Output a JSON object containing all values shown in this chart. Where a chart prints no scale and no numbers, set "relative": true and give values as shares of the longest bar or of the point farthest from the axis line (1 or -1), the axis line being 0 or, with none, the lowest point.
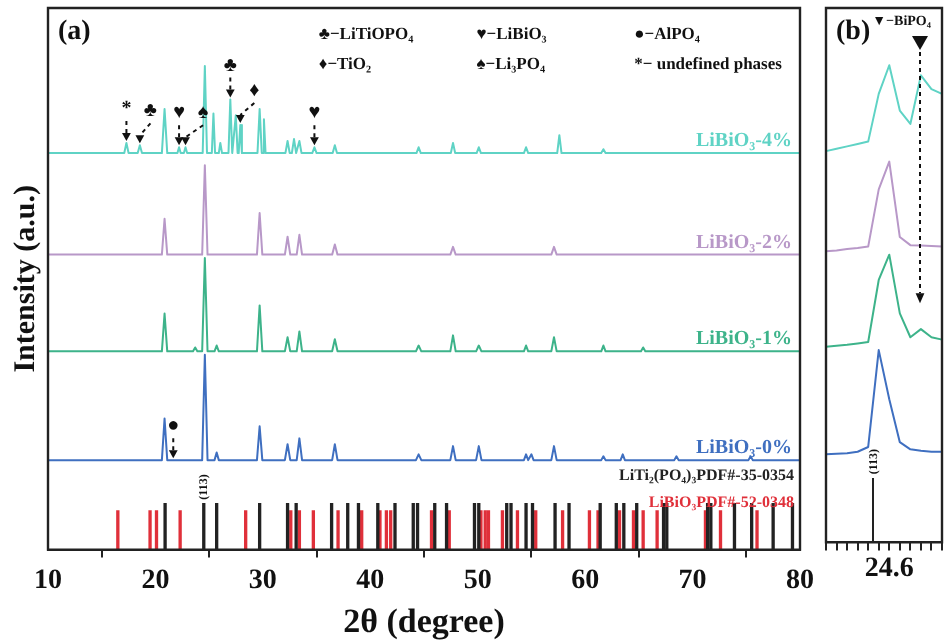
{
  "chart_data": [
    {
      "type": "line",
      "relative": true,
      "marker": "none",
      "xlabel": "2θ (degree)",
      "ylabel": "Intensity (a.u.)",
      "xlim": [
        10,
        80
      ],
      "xticks": [
        10,
        20,
        30,
        40,
        50,
        60,
        70,
        80
      ],
      "annotations": [
        "(a)",
        "♣−LiTiOPO₄",
        "♥−LiBiO₃",
        "●−AlPO₄",
        "♦−TiO₂",
        "♠−Li₃PO₄",
        "*− undefined phases",
        {
          "text": "*",
          "x": 17.3,
          "y": 0.841
        },
        {
          "text": "♣",
          "x": 18.55,
          "y": 0.836
        },
        {
          "text": "♥",
          "x": 22.2,
          "y": 0.832
        },
        {
          "text": "♠",
          "x": 22.8,
          "y": 0.832
        },
        {
          "text": "♣",
          "x": 26.97,
          "y": 0.931
        },
        {
          "text": "♦",
          "x": 27.9,
          "y": 0.878
        },
        {
          "text": "♥",
          "x": 34.8,
          "y": 0.832
        },
        {
          "text": "●",
          "x": 21.66,
          "y": 0.185
        },
        {
          "text": "(113)",
          "x": 24.5,
          "y": 0.095
        }
      ],
      "series": [
        {
          "name": "LiBiO₃-4%",
          "color": "#5fd3c5",
          "x": [
            10,
            17.1,
            17.3,
            17.5,
            18.35,
            18.55,
            18.75,
            20.6,
            20.85,
            21.1,
            22.05,
            22.2,
            22.35,
            22.65,
            22.8,
            22.95,
            24.4,
            24.6,
            24.8,
            25.25,
            25.4,
            25.55,
            25.9,
            26.04,
            26.2,
            26.8,
            26.97,
            27.15,
            27.3,
            27.48,
            27.65,
            27.75,
            27.9,
            28.05,
            29.5,
            29.7,
            29.9,
            29.95,
            30.1,
            30.25,
            32.1,
            32.3,
            32.5,
            32.7,
            32.9,
            33.1,
            33.2,
            33.4,
            33.6,
            34.6,
            34.8,
            35,
            36.5,
            36.7,
            36.9,
            44.3,
            44.5,
            44.7,
            47.5,
            47.7,
            47.9,
            49.9,
            50.1,
            50.3,
            54.3,
            54.5,
            54.7,
            57.4,
            57.6,
            57.8,
            61.5,
            61.7,
            61.9,
            80
          ],
          "values": [
            0.82,
            0.82,
            0.841,
            0.82,
            0.82,
            0.836,
            0.82,
            0.82,
            0.911,
            0.82,
            0.82,
            0.832,
            0.82,
            0.82,
            0.832,
            0.82,
            0.82,
            1,
            0.82,
            0.82,
            0.902,
            0.82,
            0.82,
            0.841,
            0.82,
            0.82,
            0.931,
            0.82,
            0.82,
            0.898,
            0.82,
            0.82,
            0.878,
            0.82,
            0.82,
            0.911,
            0.82,
            0.82,
            0.89,
            0.82,
            0.82,
            0.845,
            0.82,
            0.82,
            0.849,
            0.82,
            0.82,
            0.845,
            0.82,
            0.82,
            0.832,
            0.82,
            0.82,
            0.836,
            0.82,
            0.82,
            0.832,
            0.82,
            0.82,
            0.841,
            0.82,
            0.82,
            0.832,
            0.82,
            0.82,
            0.832,
            0.82,
            0.82,
            0.857,
            0.82,
            0.82,
            0.828,
            0.82,
            0.82
          ]
        },
        {
          "name": "LiBiO₃-2%",
          "color": "#b898c8",
          "x": [
            10,
            20.6,
            20.85,
            21.1,
            24.35,
            24.6,
            24.85,
            29.45,
            29.7,
            29.95,
            32.05,
            32.3,
            32.55,
            33.15,
            33.4,
            33.65,
            36.45,
            36.7,
            36.95,
            47.45,
            47.7,
            47.95,
            56.85,
            57.1,
            57.35,
            80
          ],
          "values": [
            0.61,
            0.61,
            0.684,
            0.61,
            0.61,
            0.795,
            0.61,
            0.61,
            0.696,
            0.61,
            0.61,
            0.647,
            0.61,
            0.61,
            0.651,
            0.61,
            0.61,
            0.631,
            0.61,
            0.61,
            0.626,
            0.61,
            0.61,
            0.626,
            0.61,
            0.61
          ]
        },
        {
          "name": "LiBiO₃-1%",
          "color": "#3db38a",
          "x": [
            10,
            20.6,
            20.85,
            21.1,
            23.5,
            23.7,
            23.9,
            24.35,
            24.6,
            24.85,
            25.5,
            25.7,
            25.9,
            29.45,
            29.7,
            29.95,
            32.05,
            32.3,
            32.55,
            33.15,
            33.4,
            33.65,
            36.45,
            36.7,
            36.95,
            44.25,
            44.5,
            44.75,
            47.45,
            47.7,
            47.95,
            49.85,
            50.1,
            50.35,
            54.3,
            54.5,
            54.7,
            56.85,
            57.1,
            57.35,
            61.5,
            61.7,
            61.9,
            65.2,
            65.4,
            65.6,
            80
          ],
          "values": [
            0.41,
            0.41,
            0.488,
            0.41,
            0.41,
            0.418,
            0.41,
            0.41,
            0.603,
            0.41,
            0.41,
            0.422,
            0.41,
            0.41,
            0.505,
            0.41,
            0.41,
            0.439,
            0.41,
            0.41,
            0.451,
            0.41,
            0.41,
            0.435,
            0.41,
            0.41,
            0.422,
            0.41,
            0.41,
            0.443,
            0.41,
            0.41,
            0.422,
            0.41,
            0.41,
            0.422,
            0.41,
            0.41,
            0.439,
            0.41,
            0.41,
            0.422,
            0.41,
            0.41,
            0.418,
            0.41,
            0.41
          ]
        },
        {
          "name": "LiBiO₃-0%",
          "color": "#3f6fc0",
          "x": [
            10,
            20.6,
            20.85,
            21.1,
            24.35,
            24.6,
            24.85,
            25.5,
            25.7,
            25.9,
            29.45,
            29.7,
            29.95,
            32.05,
            32.3,
            32.55,
            33.15,
            33.4,
            33.65,
            36.45,
            36.7,
            36.95,
            44.25,
            44.5,
            44.75,
            47.45,
            47.7,
            47.95,
            49.85,
            50.1,
            50.35,
            54.3,
            54.5,
            54.7,
            55,
            55.2,
            56.85,
            57.1,
            57.35,
            61.5,
            61.7,
            61.9,
            63.3,
            63.5,
            63.7,
            68.3,
            68.5,
            68.7,
            75.2,
            75.4,
            75.6,
            80
          ],
          "values": [
            0.185,
            0.185,
            0.271,
            0.185,
            0.185,
            0.403,
            0.185,
            0.185,
            0.201,
            0.185,
            0.185,
            0.255,
            0.185,
            0.185,
            0.218,
            0.185,
            0.185,
            0.23,
            0.185,
            0.185,
            0.218,
            0.185,
            0.185,
            0.197,
            0.185,
            0.185,
            0.214,
            0.185,
            0.185,
            0.214,
            0.185,
            0.185,
            0.197,
            0.185,
            0.197,
            0.185,
            0.185,
            0.214,
            0.185,
            0.185,
            0.193,
            0.185,
            0.185,
            0.197,
            0.185,
            0.185,
            0.193,
            0.185,
            0.185,
            0.193,
            0.185,
            0.185
          ]
        },
        {
          "name": "LiTi₂(PO₄)₃PDF#-35-0354",
          "type": "bar",
          "color": "#222222",
          "x": [
            20.9,
            24.5,
            25.7,
            29.7,
            32.3,
            33.1,
            36.4,
            37.9,
            38.9,
            40.7,
            42.3,
            44.0,
            44.4,
            46.0,
            47.1,
            49.7,
            50.1,
            52.7,
            53.1,
            54.5,
            55.1,
            57.2,
            58.5,
            61.4,
            62.9,
            63.6,
            64.8,
            67.3,
            67.6,
            71.4,
            71.7,
            73.9,
            75.5,
            77.5,
            79.3
          ],
          "values": [
            0.095,
            0.095,
            0.095,
            0.095,
            0.095,
            0.095,
            0.095,
            0.095,
            0.095,
            0.095,
            0.095,
            0.095,
            0.095,
            0.095,
            0.095,
            0.095,
            0.095,
            0.095,
            0.095,
            0.095,
            0.095,
            0.095,
            0.095,
            0.095,
            0.095,
            0.095,
            0.095,
            0.095,
            0.095,
            0.095,
            0.095,
            0.095,
            0.095,
            0.095,
            0.095
          ]
        },
        {
          "name": "LiBiO₃PDF#-52-0348",
          "type": "bar",
          "color": "#e0303a",
          "x": [
            16.5,
            19.5,
            20.1,
            22.3,
            28.4,
            32.6,
            33.4,
            34.7,
            37.0,
            39.2,
            40.9,
            41.5,
            41.9,
            45.7,
            47.35,
            50.3,
            50.7,
            51.0,
            52.3,
            53.7,
            55.4,
            57.9,
            60.4,
            61.2,
            63.2,
            64.5,
            65.4,
            66.7,
            71.2,
            72.6,
            76.0
          ],
          "values": [
            0.08,
            0.08,
            0.08,
            0.08,
            0.08,
            0.08,
            0.08,
            0.08,
            0.08,
            0.08,
            0.08,
            0.08,
            0.08,
            0.08,
            0.08,
            0.08,
            0.08,
            0.08,
            0.08,
            0.08,
            0.08,
            0.08,
            0.08,
            0.08,
            0.08,
            0.08,
            0.08,
            0.08,
            0.08,
            0.08,
            0.08
          ]
        }
      ]
    },
    {
      "type": "line",
      "relative": true,
      "marker": "none",
      "categories": [
        null,
        null,
        null,
        null,
        null,
        null,
        null,
        null,
        null,
        null,
        null,
        null
      ],
      "annotations": [
        "(b)",
        "▼−BiPO₄",
        "(113)",
        "24.6"
      ],
      "series": [
        {
          "color": "#5fd3c5",
          "values": [
            0.82,
            0.825,
            0.83,
            0.835,
            0.84,
            0.94,
            1,
            0.905,
            0.877,
            0.979,
            0.95,
            0.94
          ]
        },
        {
          "color": "#b898c8",
          "values": [
            0.61,
            0.612,
            0.615,
            0.617,
            0.62,
            0.74,
            0.798,
            0.64,
            0.623,
            0.622,
            0.621,
            0.62
          ]
        },
        {
          "color": "#3db38a",
          "values": [
            0.41,
            0.412,
            0.414,
            0.417,
            0.42,
            0.55,
            0.603,
            0.48,
            0.43,
            0.447,
            0.43,
            0.425
          ]
        },
        {
          "color": "#3f6fc0",
          "values": [
            0.185,
            0.186,
            0.187,
            0.19,
            0.2,
            0.403,
            0.3,
            0.21,
            0.195,
            0.192,
            0.19,
            0.19
          ]
        }
      ]
    }
  ]
}
